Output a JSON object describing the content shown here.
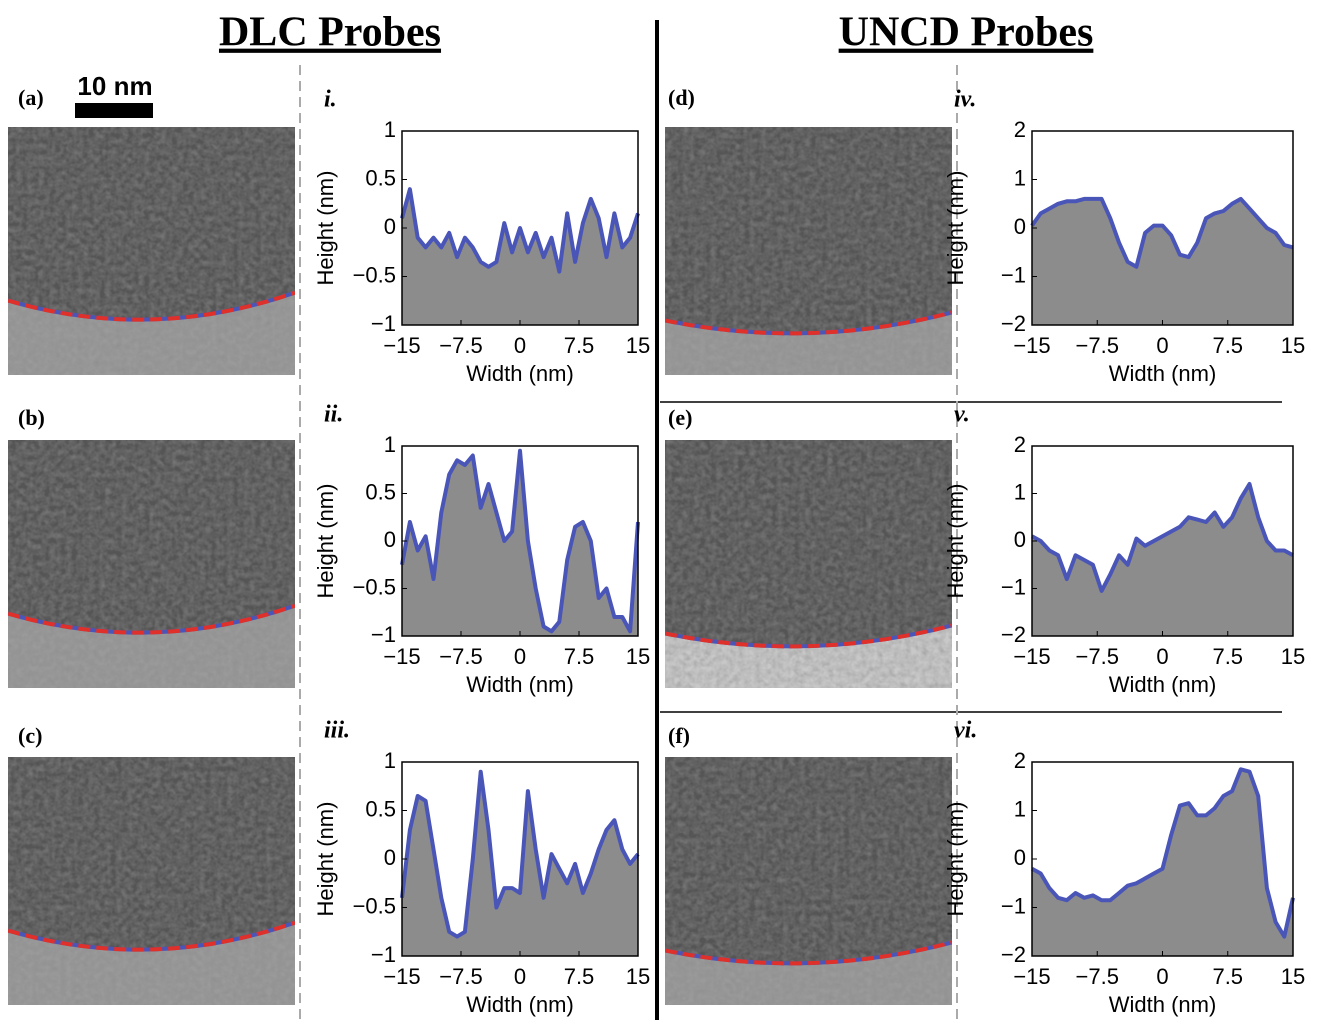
{
  "headings": [
    "DLC Probes",
    "UNCD Probes"
  ],
  "scale_bar": "10 nm",
  "image_panels": [
    "(a)",
    "(b)",
    "(c)",
    "(d)",
    "(e)",
    "(f)"
  ],
  "chart_data": [
    {
      "type": "area",
      "title": "i.",
      "xlabel": "Width (nm)",
      "ylabel": "Height (nm)",
      "color": "#4a55b8",
      "fill": "#8c8c8c",
      "x": [
        -15,
        -14,
        -13,
        -12,
        -11,
        -10,
        -9,
        -8,
        -7,
        -6,
        -5,
        -4,
        -3,
        -2,
        -1,
        0,
        1,
        2,
        3,
        4,
        5,
        6,
        7,
        8,
        9,
        10,
        11,
        12,
        13,
        14,
        15
      ],
      "values": [
        0.1,
        0.4,
        -0.1,
        -0.2,
        -0.1,
        -0.2,
        -0.05,
        -0.3,
        -0.1,
        -0.2,
        -0.35,
        -0.4,
        -0.35,
        0.05,
        -0.25,
        0,
        -0.25,
        -0.05,
        -0.3,
        -0.1,
        -0.45,
        0.15,
        -0.35,
        0.05,
        0.3,
        0.1,
        -0.3,
        0.15,
        -0.2,
        -0.1,
        0.15
      ],
      "xlim": [
        -15,
        15
      ],
      "ylim": [
        -1,
        1
      ],
      "xticks": [
        {
          "value": -15,
          "label": "−15"
        },
        {
          "value": -7.5,
          "label": "−7.5"
        },
        0,
        7.5,
        15
      ],
      "yticks": [
        {
          "value": -1,
          "label": "−1"
        },
        {
          "value": -0.5,
          "label": "−0.5"
        },
        0,
        0.5,
        1
      ]
    },
    {
      "type": "area",
      "title": "ii.",
      "xlabel": "Width (nm)",
      "ylabel": "Height (nm)",
      "color": "#4a55b8",
      "fill": "#8c8c8c",
      "x": [
        -15,
        -14,
        -13,
        -12,
        -11,
        -10,
        -9,
        -8,
        -7,
        -6,
        -5,
        -4,
        -3,
        -2,
        -1,
        0,
        1,
        2,
        3,
        4,
        5,
        6,
        7,
        8,
        9,
        10,
        11,
        12,
        13,
        14,
        15
      ],
      "values": [
        -0.25,
        0.2,
        -0.1,
        0.05,
        -0.4,
        0.3,
        0.7,
        0.85,
        0.8,
        0.9,
        0.35,
        0.6,
        0.3,
        0,
        0.1,
        0.95,
        0,
        -0.5,
        -0.9,
        -0.95,
        -0.85,
        -0.2,
        0.15,
        0.2,
        0,
        -0.6,
        -0.5,
        -0.8,
        -0.8,
        -0.95,
        0.2
      ],
      "xlim": [
        -15,
        15
      ],
      "ylim": [
        -1,
        1
      ],
      "xticks": [
        {
          "value": -15,
          "label": "−15"
        },
        {
          "value": -7.5,
          "label": "−7.5"
        },
        0,
        7.5,
        15
      ],
      "yticks": [
        {
          "value": -1,
          "label": "−1"
        },
        {
          "value": -0.5,
          "label": "−0.5"
        },
        0,
        0.5,
        1
      ]
    },
    {
      "type": "area",
      "title": "iii.",
      "xlabel": "Width (nm)",
      "ylabel": "Height (nm)",
      "color": "#4a55b8",
      "fill": "#8c8c8c",
      "x": [
        -15,
        -14,
        -13,
        -12,
        -11,
        -10,
        -9,
        -8,
        -7,
        -6,
        -5,
        -4,
        -3,
        -2,
        -1,
        0,
        1,
        2,
        3,
        4,
        5,
        6,
        7,
        8,
        9,
        10,
        11,
        12,
        13,
        14,
        15
      ],
      "values": [
        -0.4,
        0.3,
        0.65,
        0.6,
        0.1,
        -0.4,
        -0.75,
        -0.8,
        -0.75,
        0,
        0.9,
        0.3,
        -0.5,
        -0.3,
        -0.3,
        -0.35,
        0.7,
        0.1,
        -0.4,
        0.05,
        -0.1,
        -0.25,
        -0.05,
        -0.35,
        -0.15,
        0.1,
        0.3,
        0.4,
        0.1,
        -0.05,
        0.05
      ],
      "xlim": [
        -15,
        15
      ],
      "ylim": [
        -1,
        1
      ],
      "xticks": [
        {
          "value": -15,
          "label": "−15"
        },
        {
          "value": -7.5,
          "label": "−7.5"
        },
        0,
        7.5,
        15
      ],
      "yticks": [
        {
          "value": -1,
          "label": "−1"
        },
        {
          "value": -0.5,
          "label": "−0.5"
        },
        0,
        0.5,
        1
      ]
    },
    {
      "type": "area",
      "title": "iv.",
      "xlabel": "Width (nm)",
      "ylabel": "Height (nm)",
      "color": "#4a55b8",
      "fill": "#8c8c8c",
      "x": [
        -15,
        -14,
        -13,
        -12,
        -11,
        -10,
        -9,
        -8,
        -7,
        -6,
        -5,
        -4,
        -3,
        -2,
        -1,
        0,
        1,
        2,
        3,
        4,
        5,
        6,
        7,
        8,
        9,
        10,
        11,
        12,
        13,
        14,
        15
      ],
      "values": [
        0.05,
        0.3,
        0.4,
        0.5,
        0.55,
        0.55,
        0.6,
        0.6,
        0.6,
        0.2,
        -0.3,
        -0.7,
        -0.8,
        -0.1,
        0.05,
        0.05,
        -0.15,
        -0.55,
        -0.6,
        -0.3,
        0.2,
        0.3,
        0.35,
        0.5,
        0.6,
        0.4,
        0.2,
        0,
        -0.1,
        -0.35,
        -0.4
      ],
      "xlim": [
        -15,
        15
      ],
      "ylim": [
        -2,
        2
      ],
      "xticks": [
        {
          "value": -15,
          "label": "−15"
        },
        {
          "value": -7.5,
          "label": "−7.5"
        },
        0,
        7.5,
        15
      ],
      "yticks": [
        {
          "value": -2,
          "label": "−2"
        },
        {
          "value": -1,
          "label": "−1"
        },
        0,
        1,
        2
      ]
    },
    {
      "type": "area",
      "title": "v.",
      "xlabel": "Width (nm)",
      "ylabel": "Height (nm)",
      "color": "#4a55b8",
      "fill": "#8c8c8c",
      "x": [
        -15,
        -14,
        -13,
        -12,
        -11,
        -10,
        -9,
        -8,
        -7,
        -6,
        -5,
        -4,
        -3,
        -2,
        -1,
        0,
        1,
        2,
        3,
        4,
        5,
        6,
        7,
        8,
        9,
        10,
        11,
        12,
        13,
        14,
        15
      ],
      "values": [
        0.1,
        0,
        -0.2,
        -0.3,
        -0.8,
        -0.3,
        -0.4,
        -0.5,
        -1.05,
        -0.7,
        -0.3,
        -0.5,
        0.05,
        -0.1,
        0,
        0.1,
        0.2,
        0.3,
        0.5,
        0.45,
        0.4,
        0.6,
        0.3,
        0.5,
        0.9,
        1.2,
        0.5,
        0,
        -0.2,
        -0.2,
        -0.3
      ],
      "xlim": [
        -15,
        15
      ],
      "ylim": [
        -2,
        2
      ],
      "xticks": [
        {
          "value": -15,
          "label": "−15"
        },
        {
          "value": -7.5,
          "label": "−7.5"
        },
        0,
        7.5,
        15
      ],
      "yticks": [
        {
          "value": -2,
          "label": "−2"
        },
        {
          "value": -1,
          "label": "−1"
        },
        0,
        1,
        2
      ]
    },
    {
      "type": "area",
      "title": "vi.",
      "xlabel": "Width (nm)",
      "ylabel": "Height (nm)",
      "color": "#4a55b8",
      "fill": "#8c8c8c",
      "x": [
        -15,
        -14,
        -13,
        -12,
        -11,
        -10,
        -9,
        -8,
        -7,
        -6,
        -5,
        -4,
        -3,
        -2,
        -1,
        0,
        1,
        2,
        3,
        4,
        5,
        6,
        7,
        8,
        9,
        10,
        11,
        12,
        13,
        14,
        15
      ],
      "values": [
        -0.2,
        -0.3,
        -0.6,
        -0.8,
        -0.85,
        -0.7,
        -0.8,
        -0.75,
        -0.85,
        -0.85,
        -0.7,
        -0.55,
        -0.5,
        -0.4,
        -0.3,
        -0.2,
        0.5,
        1.1,
        1.15,
        0.9,
        0.9,
        1.05,
        1.3,
        1.4,
        1.85,
        1.8,
        1.3,
        -0.6,
        -1.3,
        -1.6,
        -0.8
      ],
      "xlim": [
        -15,
        15
      ],
      "ylim": [
        -2,
        2
      ],
      "xticks": [
        {
          "value": -15,
          "label": "−15"
        },
        {
          "value": -7.5,
          "label": "−7.5"
        },
        0,
        7.5,
        15
      ],
      "yticks": [
        {
          "value": -2,
          "label": "−2"
        },
        {
          "value": -1,
          "label": "−1"
        },
        0,
        1,
        2
      ]
    }
  ]
}
